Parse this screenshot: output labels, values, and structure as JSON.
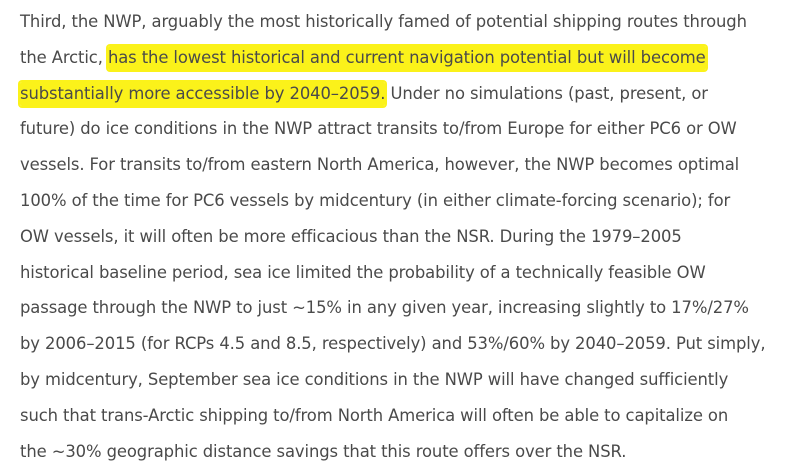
{
  "article": {
    "lines": [
      {
        "pre": "Third, the NWP, arguably the most historically famed of potential shipping routes through",
        "hl": "",
        "post": ""
      },
      {
        "pre": "the Arctic, ",
        "hl": "has the lowest historical and current navigation potential but will become",
        "post": ""
      },
      {
        "pre": "",
        "hl": "substantially more accessible by 2040–2059.",
        "post": " Under no simulations (past, present, or"
      },
      {
        "pre": "future) do ice conditions in the NWP attract transits to/from Europe for either PC6 or OW",
        "hl": "",
        "post": ""
      },
      {
        "pre": "vessels. For transits to/from eastern North America, however, the NWP becomes optimal",
        "hl": "",
        "post": ""
      },
      {
        "pre": "100% of the time for PC6 vessels by midcentury (in either climate-forcing scenario); for",
        "hl": "",
        "post": ""
      },
      {
        "pre": "OW vessels, it will often be more efficacious than the NSR. During the 1979–2005",
        "hl": "",
        "post": ""
      },
      {
        "pre": "historical baseline period, sea ice limited the probability of a technically feasible OW",
        "hl": "",
        "post": ""
      },
      {
        "pre": "passage through the NWP to just ~15% in any given year, increasing slightly to 17%/27%",
        "hl": "",
        "post": ""
      },
      {
        "pre": "by 2006–2015 (for RCPs 4.5 and 8.5, respectively) and 53%/60% by 2040–2059. Put simply,",
        "hl": "",
        "post": ""
      },
      {
        "pre": "by midcentury, September sea ice conditions in the NWP will have changed sufficiently",
        "hl": "",
        "post": ""
      },
      {
        "pre": "such that trans-Arctic shipping to/from North America will often be able to capitalize on",
        "hl": "",
        "post": ""
      },
      {
        "pre": "the ~30% geographic distance savings that this route offers over the NSR.",
        "hl": "",
        "post": ""
      }
    ]
  },
  "colors": {
    "text": "#4a4a4a",
    "highlight": "#fbf21a",
    "background": "#ffffff"
  }
}
